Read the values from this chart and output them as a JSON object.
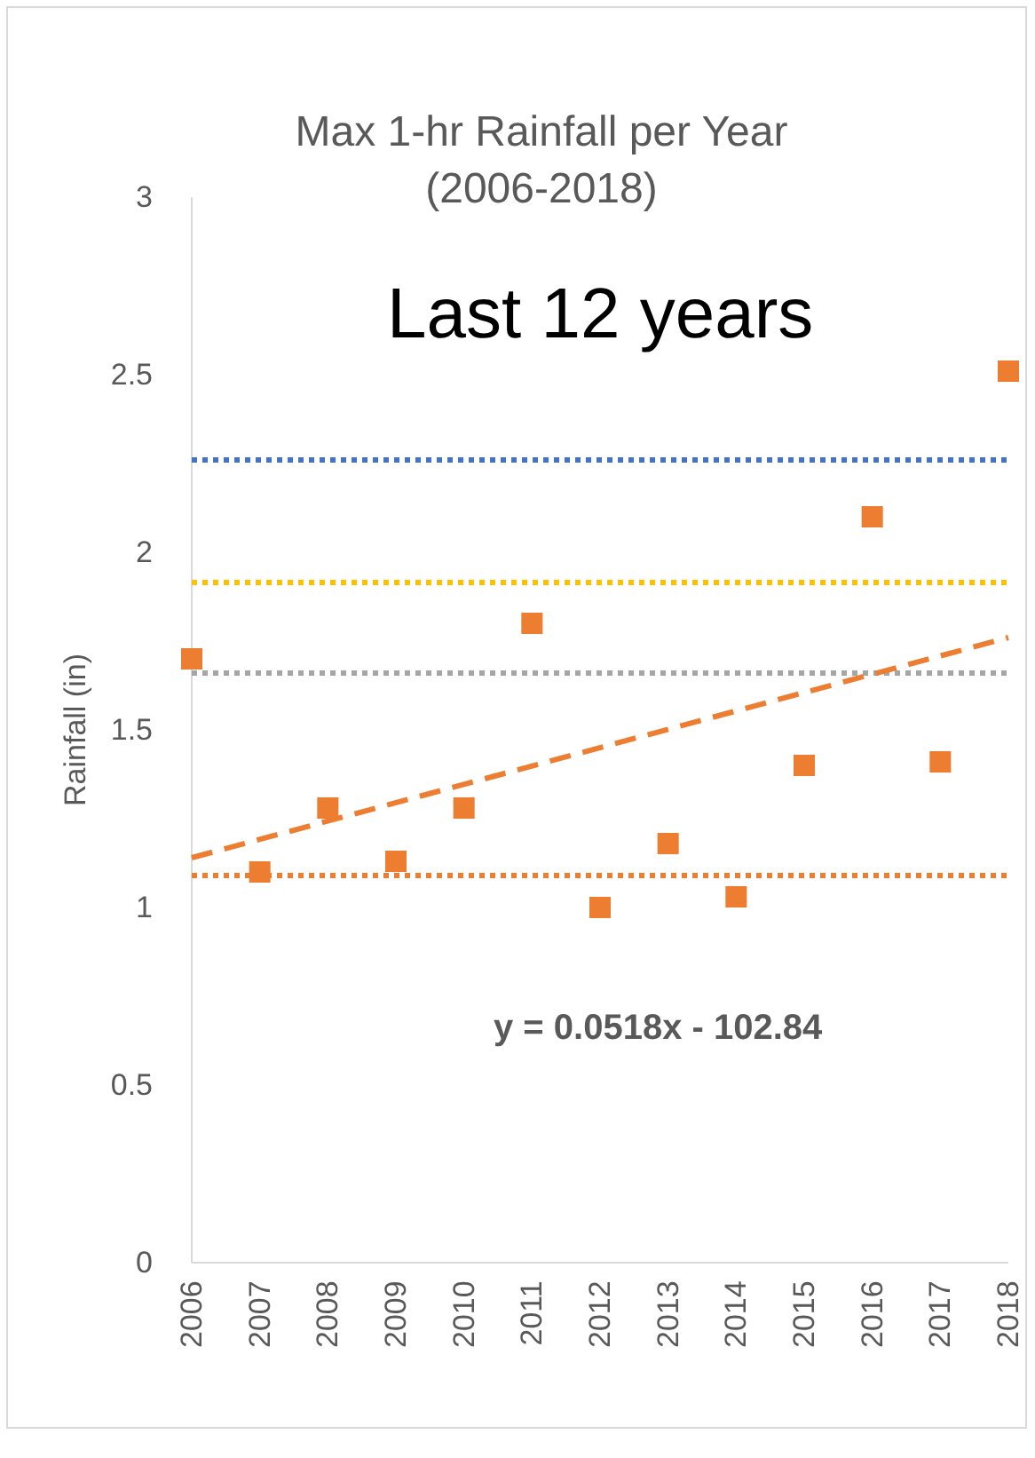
{
  "chart_data": {
    "type": "scatter",
    "title": "Max 1-hr Rainfall per Year (2006-2018)",
    "ylabel": "Rainfall (in)",
    "annotations": [
      "Last 12 years",
      "y = 0.0518x - 102.84"
    ],
    "x": [
      2006,
      2007,
      2008,
      2009,
      2010,
      2011,
      2012,
      2013,
      2014,
      2015,
      2016,
      2017,
      2018
    ],
    "series": [
      {
        "color": "#ed7d31",
        "marker": "square",
        "values": [
          1.7,
          1.1,
          1.28,
          1.13,
          1.28,
          1.8,
          1.0,
          1.18,
          1.03,
          1.4,
          2.1,
          1.41,
          2.51
        ]
      },
      {
        "type": "line",
        "color": "#ed7d31",
        "line_style": "dashed",
        "x": [
          2006,
          2018
        ],
        "values": [
          1.14,
          1.76
        ]
      }
    ],
    "xlim": [
      2006,
      2018
    ],
    "xticks": [
      2006,
      2007,
      2008,
      2009,
      2010,
      2011,
      2012,
      2013,
      2014,
      2015,
      2016,
      2017,
      2018
    ],
    "ylim": [
      0,
      3
    ],
    "yticks": [
      0,
      0.5,
      1,
      1.5,
      2,
      2.5,
      3
    ],
    "ref_lines": [
      {
        "axis": "y",
        "value": 2.26,
        "color": "#4472c4",
        "line_style": "dotted"
      },
      {
        "axis": "y",
        "value": 1.915,
        "color": "#ffc000",
        "line_style": "dotted"
      },
      {
        "axis": "y",
        "value": 1.66,
        "color": "#a5a5a5",
        "line_style": "dotted"
      },
      {
        "axis": "y",
        "value": 1.09,
        "color": "#ed7d31",
        "line_style": "dotted"
      }
    ],
    "grid": false
  }
}
